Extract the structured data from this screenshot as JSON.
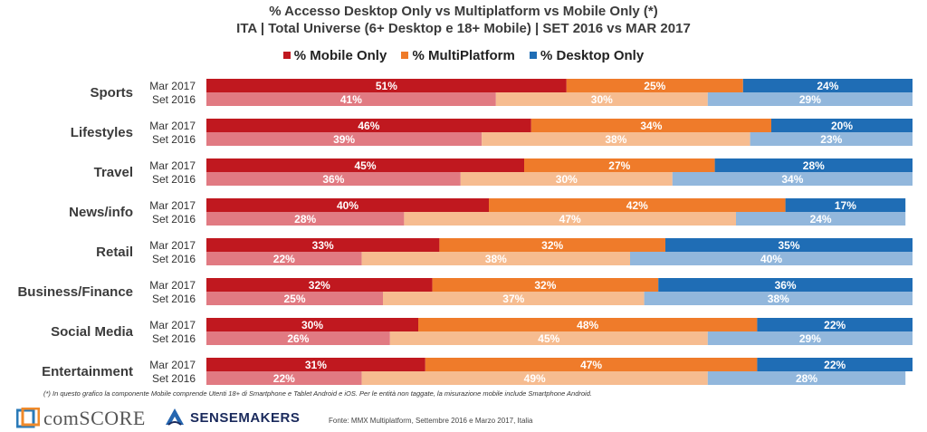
{
  "header": {
    "title": "% Accesso Desktop Only vs Multiplatform vs Mobile Only (*)",
    "subtitle": "ITA | Total Universe (6+ Desktop e 18+ Mobile) | SET 2016 vs MAR 2017"
  },
  "legend": [
    {
      "label": "% Mobile Only",
      "color": "#c0181f"
    },
    {
      "label": "% MultiPlatform",
      "color": "#ef7b2a"
    },
    {
      "label": "% Desktop Only",
      "color": "#1f6db5"
    }
  ],
  "chart_data": {
    "type": "bar",
    "orientation": "horizontal",
    "stacked": "100%",
    "categories": [
      "Sports",
      "Lifestyles",
      "Travel",
      "News/info",
      "Retail",
      "Business/Finance",
      "Social Media",
      "Entertainment"
    ],
    "periods": [
      "Mar 2017",
      "Set 2016"
    ],
    "series": [
      {
        "name": "% Mobile Only",
        "color_mar": "#c0181f",
        "color_set": "#e17a82",
        "mar_2017": [
          51,
          46,
          45,
          40,
          33,
          32,
          30,
          31
        ],
        "set_2016": [
          41,
          39,
          36,
          28,
          22,
          25,
          26,
          22
        ]
      },
      {
        "name": "% MultiPlatform",
        "color_mar": "#ef7b2a",
        "color_set": "#f6bc90",
        "mar_2017": [
          25,
          34,
          27,
          42,
          32,
          32,
          48,
          47
        ],
        "set_2016": [
          30,
          38,
          30,
          47,
          38,
          37,
          45,
          49
        ]
      },
      {
        "name": "% Desktop Only",
        "color_mar": "#1f6db5",
        "color_set": "#92b7dc",
        "mar_2017": [
          24,
          20,
          28,
          17,
          35,
          36,
          22,
          22
        ],
        "set_2016": [
          29,
          23,
          34,
          24,
          40,
          38,
          29,
          28
        ]
      }
    ],
    "value_suffix": "%",
    "xlim": [
      0,
      100
    ]
  },
  "footnote": "(*) In questo grafico la componente Mobile comprende Utenti 18+ di Smartphone e Tablet Android e iOS. Per le entità non taggate, la misurazione mobile include Smartphone Android.",
  "logos": {
    "comscore": "comSCORE",
    "sensemakers": "SENSEMAKERS"
  },
  "source": "Fonte: MMX Multiplatform, Settembre 2016 e Marzo 2017, Italia"
}
